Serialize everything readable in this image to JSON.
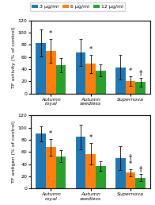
{
  "chart_data": [
    {
      "type": "bar",
      "ylabel": "TF activity (% of control)",
      "categories": [
        "Autumn royal",
        "Autumn seedless",
        "Supernova"
      ],
      "series": [
        {
          "name": "3 μg/ml",
          "values": [
            83,
            68,
            43
          ],
          "errors": [
            22,
            22,
            20
          ]
        },
        {
          "name": "6 μg/ml",
          "values": [
            70,
            49,
            21
          ],
          "errors": [
            20,
            15,
            8
          ]
        },
        {
          "name": "12 μg/ml",
          "values": [
            47,
            38,
            19
          ],
          "errors": [
            12,
            10,
            7
          ]
        }
      ],
      "annotations": [
        {
          "category": "Autumn royal",
          "series": "6 μg/ml",
          "text": "*"
        },
        {
          "category": "Autumn seedless",
          "series": "6 μg/ml",
          "text": "*"
        },
        {
          "category": "Supernova",
          "series": "6 μg/ml",
          "text": "*"
        },
        {
          "category": "Supernova",
          "series": "12 μg/ml",
          "text": "†"
        }
      ],
      "ylim": [
        0,
        120
      ],
      "yticks": [
        0,
        20,
        40,
        60,
        80,
        100,
        120
      ],
      "legend": "upper center"
    },
    {
      "type": "bar",
      "ylabel": "TF antigen (% of control)",
      "categories": [
        "Autumn royal",
        "Autumn seedless",
        "Supernova"
      ],
      "series": [
        {
          "name": "3 μg/ml",
          "values": [
            90,
            85,
            50
          ],
          "errors": [
            12,
            20,
            20
          ]
        },
        {
          "name": "6 μg/ml",
          "values": [
            68,
            57,
            26
          ],
          "errors": [
            14,
            18,
            6
          ]
        },
        {
          "name": "12 μg/ml",
          "values": [
            53,
            37,
            18
          ],
          "errors": [
            10,
            8,
            6
          ]
        }
      ],
      "annotations": [
        {
          "category": "Autumn royal",
          "series": "6 μg/ml",
          "text": "*"
        },
        {
          "category": "Autumn seedless",
          "series": "6 μg/ml",
          "text": "*"
        },
        {
          "category": "Supernova",
          "series": "6 μg/ml",
          "text": "*"
        },
        {
          "category": "Supernova",
          "series": "6 μg/ml",
          "text": "†"
        },
        {
          "category": "Supernova",
          "series": "12 μg/ml",
          "text": "†"
        }
      ],
      "ylim": [
        0,
        120
      ],
      "yticks": [
        0,
        20,
        40,
        60,
        80,
        100,
        120
      ]
    }
  ]
}
